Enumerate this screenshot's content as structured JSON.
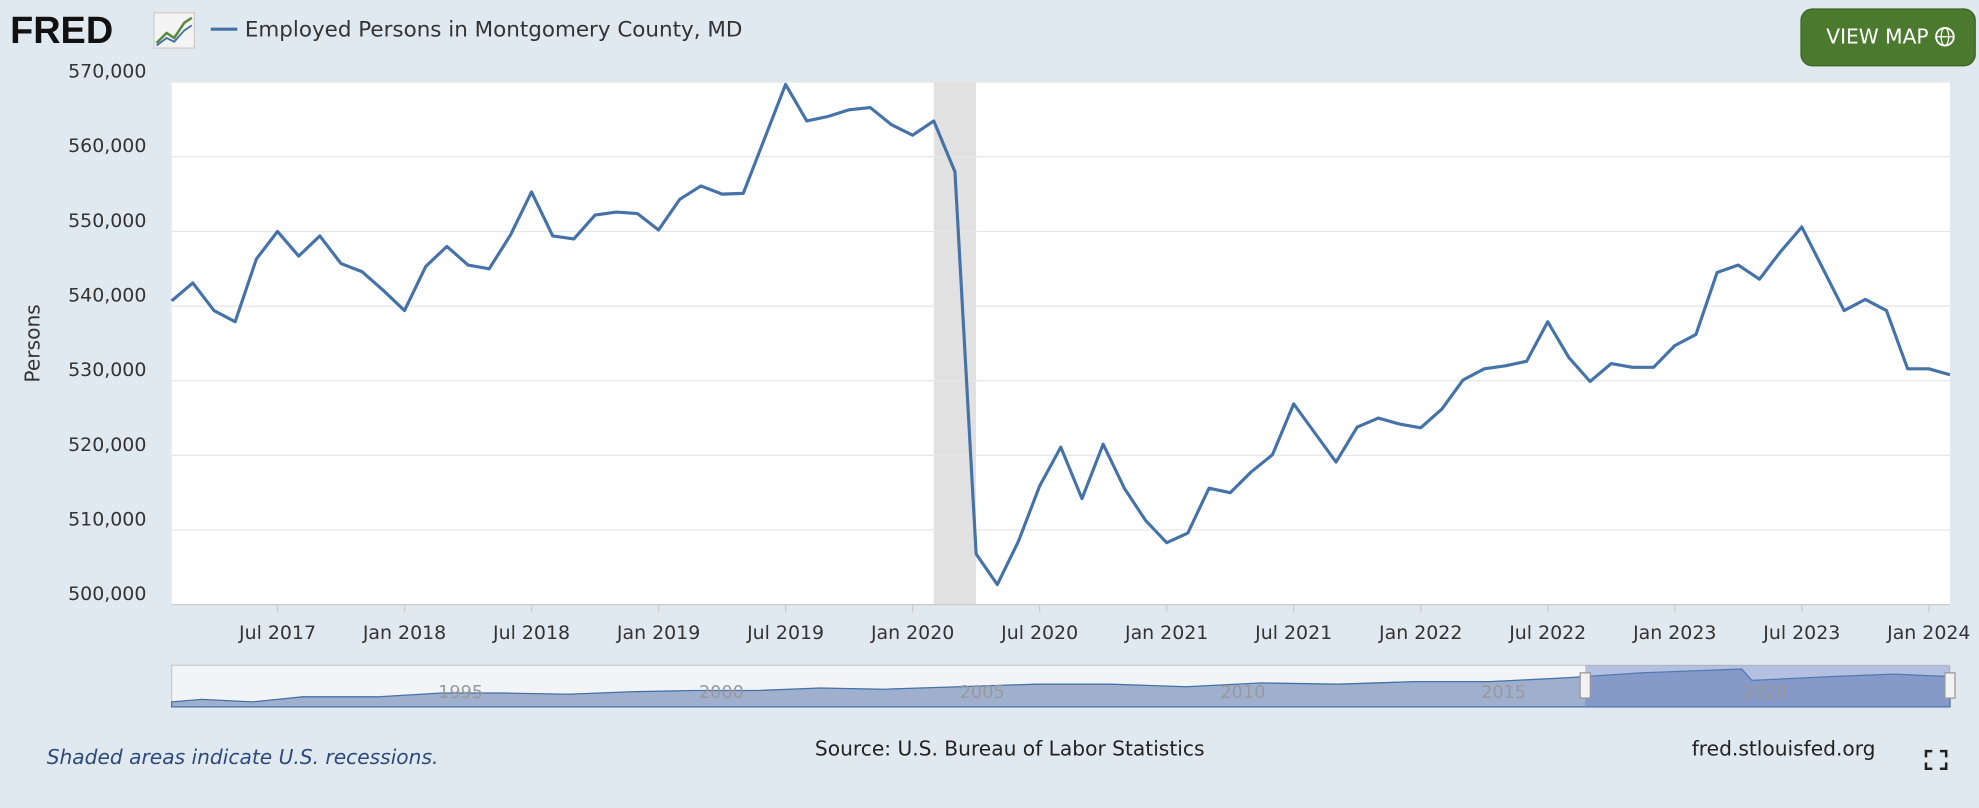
{
  "logo": "FRED",
  "view_map_button": "VIEW MAP",
  "footer": {
    "note": "Shaded areas indicate U.S. recessions.",
    "source": "Source: U.S. Bureau of Labor Statistics",
    "site": "fred.stlouisfed.org"
  },
  "navigator": {
    "labels": [
      "1995",
      "2000",
      "2005",
      "2010",
      "2015",
      "2020"
    ]
  },
  "chart_data": {
    "type": "line",
    "y_label": "Persons",
    "x": [
      "2017-02",
      "2017-03",
      "2017-04",
      "2017-05",
      "2017-06",
      "2017-07",
      "2017-08",
      "2017-09",
      "2017-10",
      "2017-11",
      "2017-12",
      "2018-01",
      "2018-02",
      "2018-03",
      "2018-04",
      "2018-05",
      "2018-06",
      "2018-07",
      "2018-08",
      "2018-09",
      "2018-10",
      "2018-11",
      "2018-12",
      "2019-01",
      "2019-02",
      "2019-03",
      "2019-04",
      "2019-05",
      "2019-06",
      "2019-07",
      "2019-08",
      "2019-09",
      "2019-10",
      "2019-11",
      "2019-12",
      "2020-01",
      "2020-02",
      "2020-03",
      "2020-04",
      "2020-05",
      "2020-06",
      "2020-07",
      "2020-08",
      "2020-09",
      "2020-10",
      "2020-11",
      "2020-12",
      "2021-01",
      "2021-02",
      "2021-03",
      "2021-04",
      "2021-05",
      "2021-06",
      "2021-07",
      "2021-08",
      "2021-09",
      "2021-10",
      "2021-11",
      "2021-12",
      "2022-01",
      "2022-02",
      "2022-03",
      "2022-04",
      "2022-05",
      "2022-06",
      "2022-07",
      "2022-08",
      "2022-09",
      "2022-10",
      "2022-11",
      "2022-12",
      "2023-01",
      "2023-02",
      "2023-03",
      "2023-04",
      "2023-05",
      "2023-06",
      "2023-07",
      "2023-08",
      "2023-09",
      "2023-10",
      "2023-11",
      "2023-12",
      "2024-01",
      "2024-02"
    ],
    "series": [
      {
        "name": "Employed Persons in Montgomery County, MD",
        "color": "#4572a7",
        "values": [
          540700,
          543100,
          539400,
          537900,
          546300,
          550000,
          546700,
          549400,
          545700,
          544600,
          542100,
          539400,
          545300,
          548000,
          545500,
          545000,
          549500,
          555300,
          549400,
          549000,
          552200,
          552600,
          552400,
          550200,
          554300,
          556100,
          555000,
          555100,
          562400,
          569700,
          564800,
          565400,
          566300,
          566600,
          564300,
          562900,
          564800,
          558000,
          506800,
          502700,
          508500,
          515900,
          521100,
          514200,
          521500,
          515600,
          511300,
          508300,
          509600,
          515600,
          515000,
          517800,
          520100,
          526900,
          523000,
          519100,
          523800,
          525000,
          524200,
          523700,
          526200,
          530100,
          531600,
          532000,
          532600,
          537900,
          533100,
          529900,
          532300,
          531800,
          531800,
          534700,
          536200,
          544500,
          545500,
          543600,
          547300,
          550600,
          545000,
          539400,
          540900,
          539400,
          531600,
          531600,
          530800
        ]
      }
    ],
    "xlim": [
      "2017-02",
      "2024-02"
    ],
    "xticks": [
      {
        "value": "2017-07",
        "label": "Jul 2017"
      },
      {
        "value": "2018-01",
        "label": "Jan 2018"
      },
      {
        "value": "2018-07",
        "label": "Jul 2018"
      },
      {
        "value": "2019-01",
        "label": "Jan 2019"
      },
      {
        "value": "2019-07",
        "label": "Jul 2019"
      },
      {
        "value": "2020-01",
        "label": "Jan 2020"
      },
      {
        "value": "2020-07",
        "label": "Jul 2020"
      },
      {
        "value": "2021-01",
        "label": "Jan 2021"
      },
      {
        "value": "2021-07",
        "label": "Jul 2021"
      },
      {
        "value": "2022-01",
        "label": "Jan 2022"
      },
      {
        "value": "2022-07",
        "label": "Jul 2022"
      },
      {
        "value": "2023-01",
        "label": "Jan 2023"
      },
      {
        "value": "2023-07",
        "label": "Jul 2023"
      },
      {
        "value": "2024-01",
        "label": "Jan 2024"
      }
    ],
    "ylim": [
      500000,
      570000
    ],
    "yticks": [
      {
        "value": 500000,
        "label": "500,000"
      },
      {
        "value": 510000,
        "label": "510,000"
      },
      {
        "value": 520000,
        "label": "520,000"
      },
      {
        "value": 530000,
        "label": "530,000"
      },
      {
        "value": 540000,
        "label": "540,000"
      },
      {
        "value": 550000,
        "label": "550,000"
      },
      {
        "value": 560000,
        "label": "560,000"
      },
      {
        "value": 570000,
        "label": "570,000"
      }
    ],
    "grid": true,
    "recessions": [
      {
        "start": "2020-02",
        "end": "2020-04"
      }
    ],
    "recession_color": "#e1e1e1"
  }
}
